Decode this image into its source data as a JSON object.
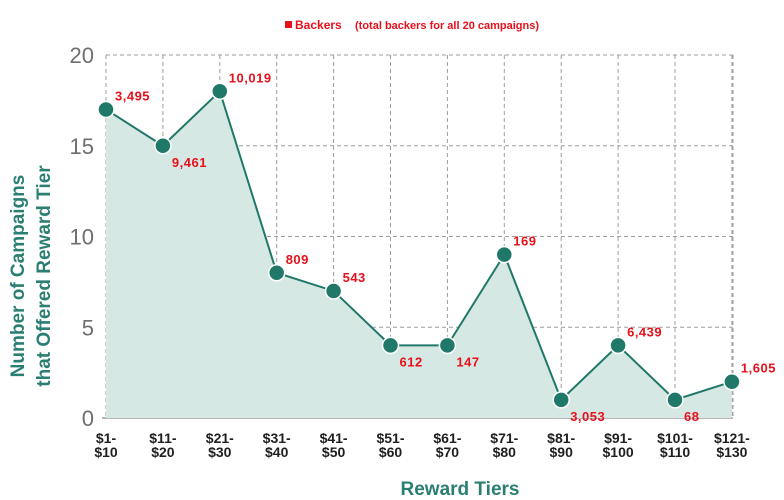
{
  "chart_data": {
    "type": "line",
    "legend": {
      "label": "Backers",
      "note": "(total backers for all 20 campaigns)",
      "color": "#e8101b",
      "placement": "top-center"
    },
    "xlabel": "Reward Tiers",
    "ylabel_line1": "Number of Campaigns",
    "ylabel_line2": "that Offered Reward Tier",
    "ylim": [
      0,
      20
    ],
    "yticks": [
      "0",
      "5",
      "10",
      "15",
      "20"
    ],
    "grid": true,
    "line_color": "#207869",
    "area_color": "#d6e8e4",
    "categories": [
      [
        "$1-",
        "$10"
      ],
      [
        "$11-",
        "$20"
      ],
      [
        "$21-",
        "$30"
      ],
      [
        "$31-",
        "$40"
      ],
      [
        "$41-",
        "$50"
      ],
      [
        "$51-",
        "$60"
      ],
      [
        "$61-",
        "$70"
      ],
      [
        "$71-",
        "$80"
      ],
      [
        "$81-",
        "$90"
      ],
      [
        "$91-",
        "$100"
      ],
      [
        "$101-",
        "$110"
      ],
      [
        "$121-",
        "$130"
      ]
    ],
    "values": [
      17,
      15,
      18,
      8,
      7,
      4,
      4,
      9,
      1,
      4,
      1,
      2
    ],
    "data_labels": [
      "3,495",
      "9,461",
      "10,019",
      "809",
      "543",
      "612",
      "147",
      "169",
      "3,053",
      "6,439",
      "68",
      "1,605"
    ]
  }
}
